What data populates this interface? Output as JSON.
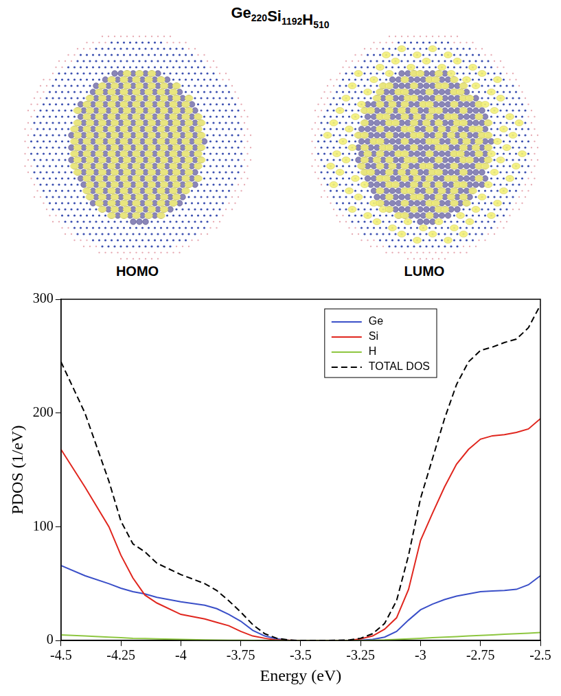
{
  "figure_title": "Ge220Si1192H510",
  "panels": [
    "HOMO",
    "LUMO"
  ],
  "chart_data": {
    "type": "line",
    "x_label": "Energy (eV)",
    "y_label": "PDOS (1/eV)",
    "x": [
      -4.5,
      -4.4,
      -4.3,
      -4.25,
      -4.2,
      -4.15,
      -4.1,
      -4.0,
      -3.9,
      -3.85,
      -3.8,
      -3.75,
      -3.7,
      -3.65,
      -3.6,
      -3.55,
      -3.5,
      -3.4,
      -3.3,
      -3.25,
      -3.2,
      -3.15,
      -3.1,
      -3.05,
      -3.0,
      -2.95,
      -2.9,
      -2.85,
      -2.8,
      -2.75,
      -2.7,
      -2.65,
      -2.6,
      -2.55,
      -2.5
    ],
    "series": [
      {
        "name": "Ge",
        "color": "#3a4fc8",
        "values": [
          66,
          57,
          50,
          46,
          43,
          41,
          38,
          34,
          31,
          28,
          23,
          17,
          9,
          4,
          1.5,
          0.3,
          0,
          0,
          0,
          0.3,
          1,
          3,
          8,
          18,
          27,
          32,
          36,
          39,
          41,
          43,
          43.5,
          44,
          45,
          49,
          57
        ]
      },
      {
        "name": "Si",
        "color": "#e0261e",
        "values": [
          168,
          135,
          100,
          75,
          55,
          40,
          33,
          23,
          19,
          16,
          13,
          8,
          4,
          2,
          0.5,
          0.2,
          0,
          0,
          0,
          1.5,
          4,
          10,
          20,
          45,
          88,
          112,
          135,
          155,
          168,
          177,
          180,
          181,
          183,
          186,
          195
        ]
      },
      {
        "name": "H",
        "color": "#8dc63f",
        "values": [
          5,
          4,
          3,
          2.5,
          2,
          1.8,
          1.5,
          1,
          0.5,
          0.4,
          0.3,
          0.2,
          0.1,
          0,
          0,
          0,
          0,
          0,
          0,
          0,
          0.3,
          0.5,
          1,
          1.5,
          2,
          2.5,
          3,
          3.5,
          4,
          4.5,
          5,
          5.5,
          6,
          6.5,
          7
        ]
      },
      {
        "name": "TOTAL DOS",
        "color": "#000000",
        "line_style": "dashed",
        "values": [
          245,
          200,
          140,
          105,
          85,
          78,
          68,
          58,
          50,
          44,
          35,
          25,
          14,
          6,
          2,
          0.5,
          0,
          0,
          0.5,
          2,
          6,
          15,
          35,
          75,
          125,
          160,
          195,
          225,
          245,
          255,
          258,
          262,
          265,
          275,
          295
        ]
      }
    ],
    "xlim": [
      -4.5,
      -2.5
    ],
    "xticks": [
      -4.5,
      -4.25,
      -4,
      -3.75,
      -3.5,
      -3.25,
      -3,
      -2.75,
      -2.5
    ],
    "ylim": [
      0,
      300
    ],
    "yticks": [
      0,
      100,
      200,
      300
    ],
    "grid": false,
    "legend": "top right"
  }
}
